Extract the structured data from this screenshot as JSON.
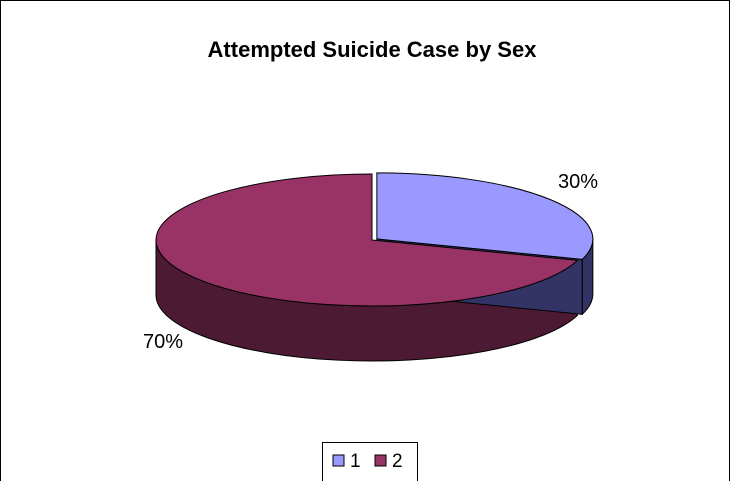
{
  "chart_data": {
    "type": "pie",
    "style": "3d-exploded-pie",
    "title": "Attempted Suicide Case by Sex",
    "categories": [
      "1",
      "2"
    ],
    "values": [
      30,
      70
    ],
    "data_labels": [
      "30%",
      "70%"
    ],
    "legend_position": "bottom",
    "colors": {
      "1": {
        "top": "#9999ff",
        "side": "#333366"
      },
      "2": {
        "top": "#993366",
        "side": "#4d1a33"
      }
    }
  }
}
